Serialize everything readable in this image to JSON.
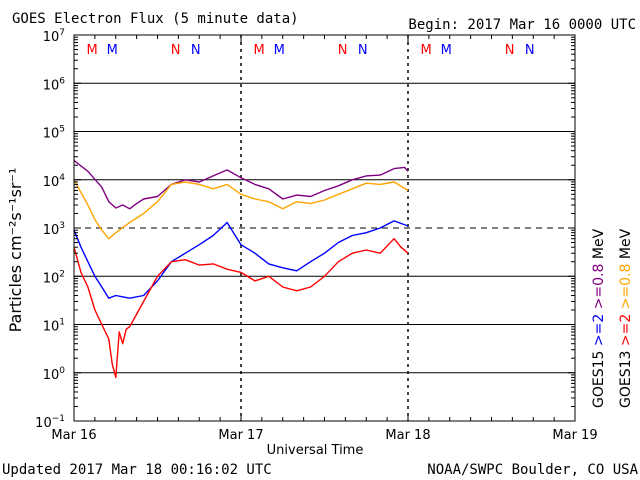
{
  "header": {
    "title": "GOES Electron Flux (5 minute data)",
    "begin": "Begin: 2017 Mar 16 0000 UTC"
  },
  "footer": {
    "updated": "Updated 2017 Mar 18 00:16:02 UTC",
    "source": "NOAA/SWPC Boulder, CO USA"
  },
  "chart_data": {
    "type": "line",
    "title": "GOES Electron Flux (5 minute data)",
    "xlabel": "Universal Time",
    "ylabel": "Particles cm⁻²s⁻¹sr⁻¹",
    "y_scale": "log",
    "ylim": [
      0.1,
      10000000
    ],
    "xlim": [
      "2017-03-16 00:00",
      "2017-03-19 00:00"
    ],
    "x_ticks": [
      "Mar 16",
      "Mar 17",
      "Mar 18",
      "Mar 19"
    ],
    "y_ticks": [
      {
        "value": 10000000,
        "base": "10",
        "exp": "7"
      },
      {
        "value": 1000000,
        "base": "10",
        "exp": "6"
      },
      {
        "value": 100000,
        "base": "10",
        "exp": "5"
      },
      {
        "value": 10000,
        "base": "10",
        "exp": "4"
      },
      {
        "value": 1000,
        "base": "10",
        "exp": "3"
      },
      {
        "value": 100,
        "base": "10",
        "exp": "2"
      },
      {
        "value": 10,
        "base": "10",
        "exp": "1"
      },
      {
        "value": 1,
        "base": "10",
        "exp": "0"
      },
      {
        "value": 0.1,
        "base": "10",
        "exp": "−1"
      }
    ],
    "grid": {
      "horizontal": true,
      "dashed_threshold": 1000
    },
    "day_markers": [
      {
        "day": 0,
        "labels": [
          {
            "text": "M",
            "hour": 2.6,
            "color": "#ff0000"
          },
          {
            "text": "M",
            "hour": 5.5,
            "color": "#0000ff"
          },
          {
            "text": "N",
            "hour": 14.6,
            "color": "#ff0000"
          },
          {
            "text": "N",
            "hour": 17.5,
            "color": "#0000ff"
          }
        ]
      },
      {
        "day": 1,
        "labels": [
          {
            "text": "M",
            "hour": 2.6,
            "color": "#ff0000"
          },
          {
            "text": "M",
            "hour": 5.5,
            "color": "#0000ff"
          },
          {
            "text": "N",
            "hour": 14.6,
            "color": "#ff0000"
          },
          {
            "text": "N",
            "hour": 17.5,
            "color": "#0000ff"
          }
        ]
      },
      {
        "day": 2,
        "labels": [
          {
            "text": "M",
            "hour": 2.6,
            "color": "#ff0000"
          },
          {
            "text": "M",
            "hour": 5.5,
            "color": "#0000ff"
          },
          {
            "text": "N",
            "hour": 14.6,
            "color": "#ff0000"
          },
          {
            "text": "N",
            "hour": 17.5,
            "color": "#0000ff"
          }
        ]
      }
    ],
    "legend_right": {
      "col1": [
        {
          "text": "GOES15",
          "color": "#000000"
        },
        {
          "text": ">=2",
          "color": "#0000ff"
        },
        {
          "text": ">=0.8",
          "color": "#800080"
        },
        {
          "text": "MeV",
          "color": "#000000"
        }
      ],
      "col2": [
        {
          "text": "GOES13",
          "color": "#000000"
        },
        {
          "text": ">=2",
          "color": "#ff0000"
        },
        {
          "text": ">=0.8",
          "color": "#ffa500"
        },
        {
          "text": "MeV",
          "color": "#000000"
        }
      ]
    },
    "series": [
      {
        "name": "GOES15 >=0.8 MeV",
        "color": "#800080",
        "x_hours": [
          0,
          2,
          4,
          5,
          6,
          7,
          8,
          9,
          10,
          12,
          14,
          16,
          18,
          20,
          22,
          24,
          26,
          28,
          30,
          32,
          34,
          36,
          38,
          40,
          42,
          44,
          46,
          47.5,
          48
        ],
        "values": [
          25000,
          15000,
          7000,
          3500,
          2600,
          3000,
          2500,
          3200,
          4000,
          4500,
          8000,
          10000,
          9000,
          12000,
          16000,
          11000,
          8000,
          6500,
          4000,
          4800,
          4500,
          6000,
          7500,
          10000,
          12000,
          12500,
          17000,
          18000,
          15000
        ]
      },
      {
        "name": "GOES13 >=0.8 MeV",
        "color": "#ffa500",
        "x_hours": [
          0,
          2,
          3,
          4,
          5,
          6,
          8,
          10,
          12,
          14,
          16,
          18,
          20,
          22,
          24,
          26,
          28,
          30,
          32,
          34,
          36,
          38,
          40,
          42,
          44,
          46,
          48
        ],
        "values": [
          10000,
          3000,
          1500,
          900,
          600,
          800,
          1300,
          2000,
          3500,
          8000,
          9000,
          8000,
          6500,
          8000,
          5000,
          4000,
          3500,
          2500,
          3500,
          3200,
          3800,
          5000,
          6500,
          8500,
          8000,
          9000,
          6000
        ]
      },
      {
        "name": "GOES15 >=2 MeV",
        "color": "#0000ff",
        "x_hours": [
          0,
          1,
          2,
          3,
          4,
          5,
          6,
          8,
          10,
          12,
          14,
          16,
          18,
          20,
          22,
          24,
          26,
          28,
          30,
          32,
          34,
          36,
          38,
          40,
          42,
          44,
          46,
          48
        ],
        "values": [
          900,
          400,
          200,
          100,
          60,
          35,
          40,
          35,
          40,
          80,
          200,
          300,
          450,
          700,
          1300,
          450,
          300,
          180,
          150,
          130,
          200,
          300,
          500,
          700,
          800,
          1000,
          1400,
          1100
        ]
      },
      {
        "name": "GOES13 >=2 MeV",
        "color": "#ff0000",
        "x_hours": [
          0,
          1,
          2,
          3,
          4,
          5,
          5.5,
          6,
          6.5,
          7,
          7.5,
          8,
          10,
          12,
          14,
          16,
          18,
          20,
          22,
          24,
          26,
          28,
          30,
          32,
          34,
          36,
          38,
          40,
          42,
          44,
          46,
          47,
          48
        ],
        "values": [
          400,
          120,
          60,
          20,
          10,
          5,
          1.5,
          0.8,
          7,
          4,
          8,
          9,
          30,
          100,
          200,
          220,
          170,
          180,
          140,
          120,
          80,
          100,
          60,
          50,
          60,
          100,
          200,
          300,
          350,
          300,
          600,
          400,
          300
        ]
      }
    ]
  }
}
